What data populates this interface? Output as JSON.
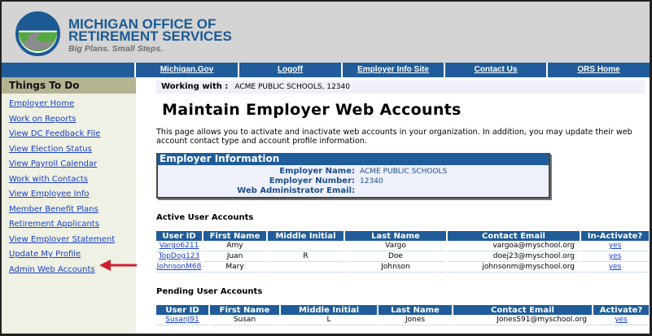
{
  "header": {
    "brand_line1": "MICHIGAN OFFICE OF",
    "brand_line2": "RETIREMENT SERVICES",
    "tagline": "Big Plans. Small Steps."
  },
  "nav": [
    "Michigan.Gov",
    "Logoff",
    "Employer Info Site",
    "Contact Us",
    "ORS Home"
  ],
  "sidebar": {
    "title": "Things To Do",
    "items": [
      "Employer Home",
      "Work on Reports",
      "View DC Feedback File",
      "View Election Status",
      "View Payroll Calendar",
      "Work with Contacts",
      "View Employee Info",
      "Member Benefit Plans",
      "Retirement Applicants",
      "View Employer Statement",
      "Update My Profile",
      "Admin Web Accounts"
    ]
  },
  "main": {
    "working_label": "Working with :",
    "working_value": "ACME PUBLIC SCHOOLS, 12340",
    "title": "Maintain Employer Web Accounts",
    "description": "This page allows you to activate and inactivate web accounts in your organization. In addition, you may update their web account contact type and account profile information.",
    "employer": {
      "title": "Employer Information",
      "name_label": "Employer Name:",
      "name": "ACME PUBLIC SCHOOLS",
      "number_label": "Employer Number:",
      "number": "12340",
      "email_label": "Web Administrator Email:",
      "email": ""
    },
    "active": {
      "heading": "Active User Accounts",
      "columns": [
        "User ID",
        "First Name",
        "Middle Initial",
        "Last Name",
        "Contact Email",
        "In-Activate?"
      ],
      "rows": [
        [
          "Vargo6211",
          "Amy",
          "",
          "Vargo",
          "vargoa@myschool.org",
          "yes"
        ],
        [
          "TopDog123",
          "Juan",
          "R",
          "Doe",
          "doej23@myschool.org",
          "yes"
        ],
        [
          "JohnsonM68",
          "Mary",
          "",
          "Johnson",
          "johnsonm@myschool.org",
          "yes"
        ]
      ]
    },
    "pending": {
      "heading": "Pending User Accounts",
      "columns": [
        "User ID",
        "First Name",
        "Middle Initial",
        "Last Name",
        "Contact Email",
        "Activate?"
      ],
      "rows": [
        [
          "SusanJ91",
          "Susan",
          "L",
          "Jones",
          "JonesS91@myschool.org",
          "yes"
        ]
      ]
    }
  },
  "colors": {
    "nav": "#1f5c99",
    "sidebar_header": "#b4b493",
    "arrow": "#d0202f"
  }
}
